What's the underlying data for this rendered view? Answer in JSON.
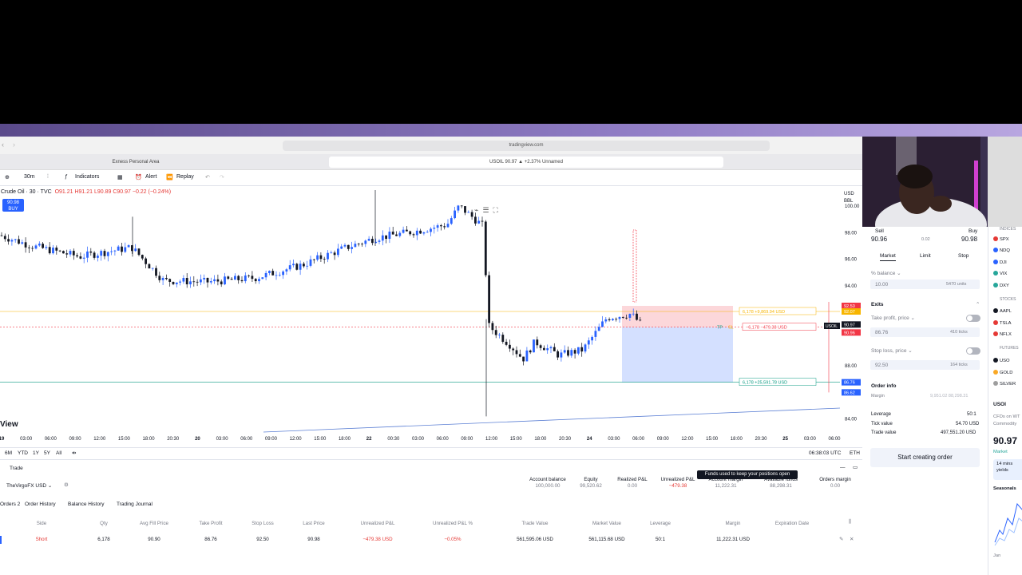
{
  "browser": {
    "url": "tradingview.com",
    "tab_left": "Exness Personal Area",
    "tab_right": "USOIL 90.97 ▲ +2.37% Unnamed"
  },
  "toolbar": {
    "interval": "30m",
    "indicators": "Indicators",
    "alert": "Alert",
    "replay": "Replay"
  },
  "chart": {
    "symbol_line": "Crude Oil · 30 · TVC",
    "ohlc": "O91.21 H91.21 L90.89 C90.97 −0.22 (−0.24%)",
    "price_badge_value": "90.98",
    "price_badge_label": "BUY",
    "currency": "USD",
    "currency_sub": "BBL",
    "view_label": "View",
    "y_ticks": [
      "100.00",
      "98.00",
      "96.00",
      "94.00",
      "88.00",
      "86.00",
      "84.00"
    ],
    "y_tick_values": [
      100,
      98,
      96,
      94,
      88,
      86,
      84
    ],
    "x_ticks": [
      "19",
      "03:00",
      "06:00",
      "09:00",
      "12:00",
      "15:00",
      "18:00",
      "20:30",
      "20",
      "03:00",
      "06:00",
      "09:00",
      "12:00",
      "15:00",
      "18:00",
      "22",
      "00:30",
      "03:00",
      "06:00",
      "09:00",
      "12:00",
      "15:00",
      "18:00",
      "20:30",
      "24",
      "03:00",
      "06:00",
      "09:00",
      "12:00",
      "15:00",
      "18:00",
      "20:30",
      "25",
      "03:00",
      "06:00"
    ],
    "order_tp_label": "6,178  +9,869.94 USD",
    "order_entry_label": "−6,178  −479.38 USD",
    "order_sl_label": "6,178  +25,591.78 USD",
    "tp_tag": "TP",
    "sl_tag": "SL",
    "axis_tag_top": "92.50",
    "axis_tag_tp": "92.07",
    "axis_tag_last": "90.97",
    "axis_tag_last_sub": "21:56",
    "axis_tag_bid": "90.96",
    "axis_tag_sl": "86.76",
    "axis_tag_bottom": "86.62",
    "symbol_tag": "USOIL"
  },
  "chart_data": {
    "type": "candlestick",
    "ylim": [
      83.5,
      101.5
    ],
    "levels": {
      "take_profit": 86.76,
      "entry": 90.9,
      "stop_loss": 92.5,
      "last": 90.97
    }
  },
  "timeframes": {
    "items": [
      "6M",
      "YTD",
      "1Y",
      "5Y",
      "All"
    ],
    "clock": "06:38:03 UTC",
    "session": "ETH"
  },
  "trade": {
    "tab_label": "Trade",
    "account": "TheVirgoFX USD",
    "tooltip": "Funds used to keep your positions open",
    "summary": [
      {
        "label": "Account balance",
        "value": "100,000.00"
      },
      {
        "label": "Equity",
        "value": "99,520.62"
      },
      {
        "label": "Realized P&L",
        "value": "0.00"
      },
      {
        "label": "Unrealized P&L",
        "value": "−479.38"
      },
      {
        "label": "Account margin",
        "value": "11,222.31"
      },
      {
        "label": "Available funds",
        "value": "88,298.31"
      },
      {
        "label": "Orders margin",
        "value": "0.00"
      }
    ],
    "subtabs": [
      "Orders 2",
      "Order History",
      "Balance History",
      "Trading Journal"
    ],
    "columns": [
      "Side",
      "Qty",
      "Avg Fill Price",
      "Take Profit",
      "Stop Loss",
      "Last Price",
      "Unrealized P&L",
      "Unrealized P&L %",
      "Trade Value",
      "Market Value",
      "Leverage",
      "Margin",
      "Expiration Date"
    ],
    "row": [
      "Short",
      "6,178",
      "90.90",
      "86.76",
      "92.50",
      "90.98",
      "−479.38 USD",
      "−0.05%",
      "561,595.06 USD",
      "561,115.68 USD",
      "50:1",
      "11,222.31 USD",
      ""
    ]
  },
  "order": {
    "sell_label": "Sell",
    "sell_price": "90.96",
    "spread": "0.02",
    "buy_label": "Buy",
    "buy_price": "90.98",
    "types": [
      "Market",
      "Limit",
      "Stop"
    ],
    "qty_mode": "% balance",
    "qty_value": "10.00",
    "qty_units": "5470 units",
    "exits_label": "Exits",
    "tp_label": "Take profit, price",
    "tp_value": "86.76",
    "tp_ticks": "410 ticks",
    "sl_label": "Stop loss, price",
    "sl_value": "92.50",
    "sl_ticks": "164 ticks",
    "info_label": "Order info",
    "margin_label": "Margin",
    "margin_value": "9,951.02  88,298.31",
    "leverage_label": "Leverage",
    "leverage_value": "50:1",
    "tick_label": "Tick value",
    "tick_value": "54.70 USD",
    "trade_label": "Trade value",
    "trade_value": "497,551.20 USD",
    "start_button": "Start creating order"
  },
  "watchlist": {
    "sections": [
      "INDICES",
      "STOCKS",
      "FUTURES"
    ],
    "items": [
      {
        "sym": "SPX",
        "color": "#e53935"
      },
      {
        "sym": "NDQ",
        "color": "#2962ff"
      },
      {
        "sym": "DJI",
        "color": "#2962ff"
      },
      {
        "sym": "VIX",
        "color": "#26a69a"
      },
      {
        "sym": "DXY",
        "color": "#26a69a"
      },
      {
        "sym": "AAPL",
        "color": "#131722"
      },
      {
        "sym": "TSLA",
        "color": "#e53935"
      },
      {
        "sym": "NFLX",
        "color": "#e53935"
      },
      {
        "sym": "USO",
        "color": "#131722"
      },
      {
        "sym": "GOLD",
        "color": "#f9a825"
      },
      {
        "sym": "SILVER",
        "color": "#9e9e9e"
      }
    ],
    "detail_symbol": "USOI",
    "detail_desc": "CFDs on WT",
    "detail_sub": "Commodity",
    "detail_price": "90.97",
    "detail_status": "Market",
    "news": "14 mins",
    "news_sub": "yields",
    "seasonals": "Seasonals",
    "season_month": "Jan"
  }
}
